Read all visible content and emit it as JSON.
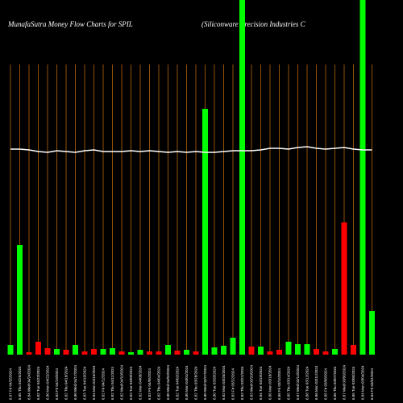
{
  "chart_data": {
    "type": "bar",
    "title": "MunafaSutra  Money Flow  Charts for SPIL",
    "subtitle": "(Siliconware  Precision  Industries C",
    "categories": [
      "6.97 Fri 04/26/2024",
      "6.85 Thu 04/25/2024",
      "6.84 Wed 04/24/2024",
      "6.82 Tue 04/23/2024",
      "6.80 Mon 04/22/2024",
      "6.83 Fri 04/19/2024",
      "6.82 Thu 04/18/2024",
      "6.80 Wed 04/17/2024",
      "6.83 Tue 04/16/2024",
      "6.84 Mon 04/15/2024",
      "6.82 Fri 04/12/2024",
      "6.82 Thu 04/11/2024",
      "6.82 Wed 04/10/2024",
      "6.83 Tue 04/09/2024",
      "6.82 Mon 04/08/2024",
      "6.83 Fri 04/05/2024",
      "6.82 Thu 04/04/2024",
      "6.80 Wed 04/03/2024",
      "6.82 Tue 04/02/2024",
      "6.80 Mon 04/01/2024",
      "6.82 Thu 03/28/2024",
      "6.80 Wed 03/27/2024",
      "6.80 Tue 03/26/2024",
      "6.82 Mon 03/25/2024",
      "6.83 Fri 03/22/2024",
      "6.83 Thu 03/21/2024",
      "6.83 Wed 03/20/2024",
      "6.84 Tue 03/19/2024",
      "6.86 Mon 03/18/2024",
      "6.86 Fri 03/15/2024",
      "6.85 Thu 03/14/2024",
      "6.87 Wed 03/13/2024",
      "6.88 Tue 03/12/2024",
      "6.86 Mon 03/11/2024",
      "6.85 Fri 03/08/2024",
      "6.86 Thu 03/07/2024",
      "6.87 Wed 03/06/2024",
      "6.85 Tue 03/05/2024",
      "6.84 Mon 03/04/2024",
      "6.84 Fri 03/01/2024"
    ],
    "values": [
      12,
      136,
      3,
      16,
      8,
      7,
      6,
      12,
      4,
      7,
      7,
      8,
      4,
      3,
      6,
      4,
      4,
      12,
      5,
      6,
      4,
      305,
      9,
      11,
      21,
      450,
      10,
      10,
      4,
      6,
      16,
      13,
      13,
      7,
      4,
      7,
      164,
      12,
      450,
      54
    ],
    "colors": [
      "#00ff00",
      "#00ff00",
      "#ff0000",
      "#ff0000",
      "#ff0000",
      "#00ff00",
      "#ff0000",
      "#00ff00",
      "#ff0000",
      "#ff0000",
      "#00ff00",
      "#00ff00",
      "#ff0000",
      "#00ff00",
      "#00ff00",
      "#ff0000",
      "#ff0000",
      "#00ff00",
      "#ff0000",
      "#00ff00",
      "#ff0000",
      "#00ff00",
      "#00ff00",
      "#00ff00",
      "#00ff00",
      "#00ff00",
      "#ff0000",
      "#00ff00",
      "#ff0000",
      "#ff0000",
      "#00ff00",
      "#00ff00",
      "#00ff00",
      "#ff0000",
      "#ff0000",
      "#00ff00",
      "#ff0000",
      "#ff0000",
      "#00ff00",
      "#00ff00"
    ],
    "line_values": [
      255,
      255,
      254,
      252,
      251,
      253,
      252,
      251,
      253,
      254,
      252,
      252,
      252,
      253,
      252,
      253,
      252,
      251,
      252,
      251,
      252,
      251,
      251,
      252,
      253,
      253,
      253,
      254,
      256,
      256,
      255,
      257,
      258,
      256,
      255,
      256,
      257,
      255,
      254,
      254
    ],
    "line_color": "#ffffff",
    "grid_color": "#b8640a"
  }
}
